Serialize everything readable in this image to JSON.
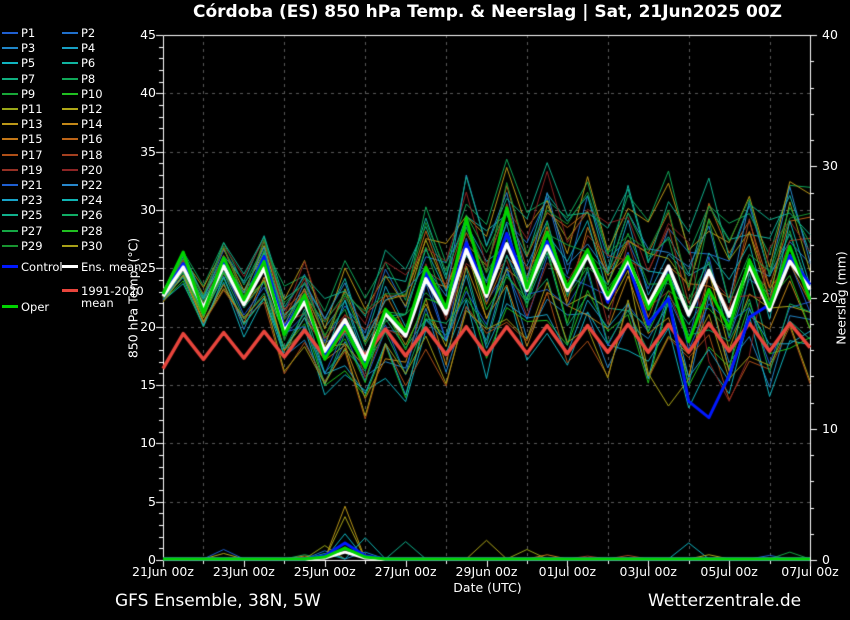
{
  "title": "Córdoba  (ES)  850 hPa Temp. & Neerslag | Sat, 21Jun2025 00Z",
  "footer": {
    "left": "GFS Ensemble, 38N, 5W",
    "right": "Wetterzentrale.de"
  },
  "legend": {
    "members": [
      {
        "label": "P1",
        "color": "#1f5fd0"
      },
      {
        "label": "P2",
        "color": "#2070cc"
      },
      {
        "label": "P3",
        "color": "#2086c8"
      },
      {
        "label": "P4",
        "color": "#18a0c4"
      },
      {
        "label": "P5",
        "color": "#10b4c0"
      },
      {
        "label": "P6",
        "color": "#10b4a0"
      },
      {
        "label": "P7",
        "color": "#10b080"
      },
      {
        "label": "P8",
        "color": "#10a858"
      },
      {
        "label": "P9",
        "color": "#18a838"
      },
      {
        "label": "P10",
        "color": "#20c020"
      },
      {
        "label": "P11",
        "color": "#9aa818"
      },
      {
        "label": "P12",
        "color": "#b0a818"
      },
      {
        "label": "P13",
        "color": "#bc9818"
      },
      {
        "label": "P14",
        "color": "#c48818"
      },
      {
        "label": "P15",
        "color": "#c47818"
      },
      {
        "label": "P16",
        "color": "#bc6418"
      },
      {
        "label": "P17",
        "color": "#b05018"
      },
      {
        "label": "P18",
        "color": "#a44020"
      },
      {
        "label": "P19",
        "color": "#953024"
      },
      {
        "label": "P20",
        "color": "#8c2424"
      },
      {
        "label": "P21",
        "color": "#1f5fd0"
      },
      {
        "label": "P22",
        "color": "#2888cc"
      },
      {
        "label": "P23",
        "color": "#18a4c8"
      },
      {
        "label": "P24",
        "color": "#10b4b4"
      },
      {
        "label": "P25",
        "color": "#10b08c"
      },
      {
        "label": "P26",
        "color": "#10ac64"
      },
      {
        "label": "P27",
        "color": "#14a844"
      },
      {
        "label": "P28",
        "color": "#20c020"
      },
      {
        "label": "P29",
        "color": "#189430"
      },
      {
        "label": "P30",
        "color": "#a8a018"
      }
    ],
    "special": [
      {
        "label": "Control",
        "color": "#0018ff",
        "col": 0,
        "y": 234
      },
      {
        "label": "Ens. mean",
        "color": "#ffffff",
        "col": 1,
        "y": 234
      },
      {
        "label": "1991-2020",
        "label2": "mean",
        "color": "#e8453c",
        "col": 1,
        "y": 258
      },
      {
        "label": "Oper",
        "color": "#00d400",
        "col": 0,
        "y": 274
      }
    ]
  },
  "chart_data": {
    "type": "line",
    "title": "Córdoba  (ES)  850 hPa Temp. & Neerslag | Sat, 21Jun2025 00Z",
    "xlabel": "Date (UTC)",
    "ylabel_left": "850 hPa Temp. (°C)",
    "ylabel_right": "Neerslag (mm)",
    "ylim_left": [
      0,
      45
    ],
    "ylim_right": [
      0,
      40
    ],
    "grid": true,
    "start_time": "21Jun2025 00Z",
    "time_step_hours": 12,
    "n_points": 33,
    "x_tick_labels": [
      "21Jun 00z",
      "23Jun 00z",
      "25Jun 00z",
      "27Jun 00z",
      "29Jun 00z",
      "01Jul 00z",
      "03Jul 00z",
      "05Jul 00z",
      "07Jul 00z"
    ],
    "y_left_tick_labels": [
      "0",
      "5",
      "10",
      "15",
      "20",
      "25",
      "30",
      "35",
      "40",
      "45"
    ],
    "y_right_tick_labels": [
      "0",
      "10",
      "20",
      "30",
      "40"
    ],
    "series": {
      "ens_mean": {
        "name": "Ens. mean",
        "color": "#ffffff",
        "width": 3.5,
        "values": [
          22.6,
          25.1,
          21.6,
          25.2,
          21.9,
          25.0,
          19.6,
          22.1,
          17.9,
          20.6,
          17.2,
          21.1,
          19.2,
          24.1,
          21.1,
          26.6,
          22.6,
          27.1,
          23.1,
          26.9,
          23.1,
          26.1,
          22.4,
          25.7,
          21.9,
          25.2,
          21.0,
          24.8,
          20.9,
          25.2,
          21.4,
          25.6,
          23.2
        ]
      },
      "control": {
        "name": "Control",
        "color": "#0018ff",
        "width": 3,
        "values": [
          22.7,
          25.4,
          21.4,
          25.6,
          22.1,
          26.0,
          19.8,
          22.4,
          17.6,
          20.2,
          16.9,
          21.3,
          19.4,
          24.6,
          21.3,
          27.2,
          22.9,
          28.0,
          23.4,
          27.3,
          23.2,
          26.3,
          22.1,
          25.4,
          20.2,
          22.4,
          13.6,
          12.2,
          15.8,
          20.8,
          21.9,
          26.1,
          23.6
        ]
      },
      "oper": {
        "name": "Oper",
        "color": "#00d400",
        "width": 3,
        "values": [
          22.8,
          26.4,
          21.2,
          25.9,
          22.3,
          25.6,
          19.3,
          22.7,
          17.2,
          20.0,
          16.5,
          21.5,
          19.6,
          25.1,
          21.6,
          29.3,
          22.9,
          30.2,
          23.3,
          28.1,
          23.4,
          26.6,
          22.7,
          26.0,
          21.5,
          24.4,
          18.7,
          23.2,
          19.9,
          25.7,
          21.7,
          26.9,
          22.3
        ]
      },
      "climate_mean": {
        "name": "1991-2020 mean",
        "color": "#e8453c",
        "width": 3.5,
        "values": [
          16.4,
          19.4,
          17.2,
          19.5,
          17.3,
          19.6,
          17.4,
          19.7,
          17.4,
          19.8,
          17.5,
          19.8,
          17.5,
          19.9,
          17.6,
          20.0,
          17.6,
          20.0,
          17.7,
          20.1,
          17.7,
          20.1,
          17.8,
          20.2,
          17.8,
          20.2,
          17.8,
          20.3,
          17.9,
          20.3,
          17.9,
          20.3,
          18.2
        ]
      }
    },
    "ensemble": {
      "spread_profile": [
        0.3,
        0.7,
        0.9,
        1.1,
        1.3,
        1.6,
        1.8,
        2.0,
        2.2,
        2.4,
        2.5,
        2.7,
        2.9,
        3.0,
        3.1,
        3.2,
        3.3,
        3.4,
        3.4,
        3.5,
        3.5,
        3.6,
        3.6,
        3.7,
        3.7,
        3.8,
        3.8,
        3.9,
        3.9,
        4.0,
        4.0,
        4.1,
        4.2
      ],
      "member_offsets": [
        -0.2,
        0.9,
        -1.1,
        0.4,
        -1.6,
        1.2,
        -0.7,
        1.6,
        0.1,
        -1.3,
        0.7,
        -0.4,
        1.4,
        -0.9,
        0.2,
        1.0,
        -1.5,
        0.5,
        -0.1,
        1.3,
        -0.6,
        0.8,
        -1.2,
        0.3,
        1.5,
        -0.8,
        0.6,
        -0.3,
        1.1,
        -1.4
      ],
      "member_overrides": {
        "P12": {
          "24": 16.0,
          "25": 13.2,
          "26": 15.5
        },
        "P20": {
          "27": 17.0,
          "28": 13.6,
          "29": 17.5
        },
        "P22": {
          "15": 33.0,
          "17": 31.5,
          "29": 30.8,
          "31": 32.0
        }
      }
    },
    "precip": {
      "unit": "mm",
      "main": {
        "ens_mean": {
          "j": 9,
          "mm": 0.6
        },
        "control": {
          "j": 9,
          "mm": 1.3
        },
        "oper": {
          "j": 9,
          "mm": 0.9
        }
      },
      "events": [
        {
          "j": 3,
          "mm": 0.8,
          "color": "#1f5fd0"
        },
        {
          "j": 3,
          "mm": 0.5,
          "color": "#b0a818"
        },
        {
          "j": 7,
          "mm": 0.4,
          "color": "#10a858"
        },
        {
          "j": 7,
          "mm": 0.3,
          "color": "#c47818"
        },
        {
          "j": 8,
          "mm": 1.1,
          "color": "#9aa818"
        },
        {
          "j": 8,
          "mm": 0.7,
          "color": "#2070cc"
        },
        {
          "j": 8,
          "mm": 0.5,
          "color": "#10b4a0"
        },
        {
          "j": 9,
          "mm": 4.1,
          "color": "#bc9818"
        },
        {
          "j": 9,
          "mm": 3.3,
          "color": "#b0a818"
        },
        {
          "j": 9,
          "mm": 2.0,
          "color": "#10b4c0"
        },
        {
          "j": 9,
          "mm": 1.0,
          "color": "#bc6418"
        },
        {
          "j": 9,
          "mm": 0.8,
          "color": "#18a838"
        },
        {
          "j": 10,
          "mm": 1.7,
          "color": "#10b4b4"
        },
        {
          "j": 10,
          "mm": 0.6,
          "color": "#2086c8"
        },
        {
          "j": 12,
          "mm": 1.4,
          "color": "#10b08c"
        },
        {
          "j": 16,
          "mm": 1.5,
          "color": "#b0a818"
        },
        {
          "j": 18,
          "mm": 0.8,
          "color": "#9aa818"
        },
        {
          "j": 19,
          "mm": 0.4,
          "color": "#c47818"
        },
        {
          "j": 21,
          "mm": 0.3,
          "color": "#953024"
        },
        {
          "j": 23,
          "mm": 0.35,
          "color": "#a44020"
        },
        {
          "j": 26,
          "mm": 1.3,
          "color": "#10b4c0"
        },
        {
          "j": 27,
          "mm": 0.4,
          "color": "#b0a818"
        },
        {
          "j": 30,
          "mm": 0.35,
          "color": "#1f5fd0"
        },
        {
          "j": 31,
          "mm": 0.6,
          "color": "#14a844"
        }
      ]
    }
  }
}
